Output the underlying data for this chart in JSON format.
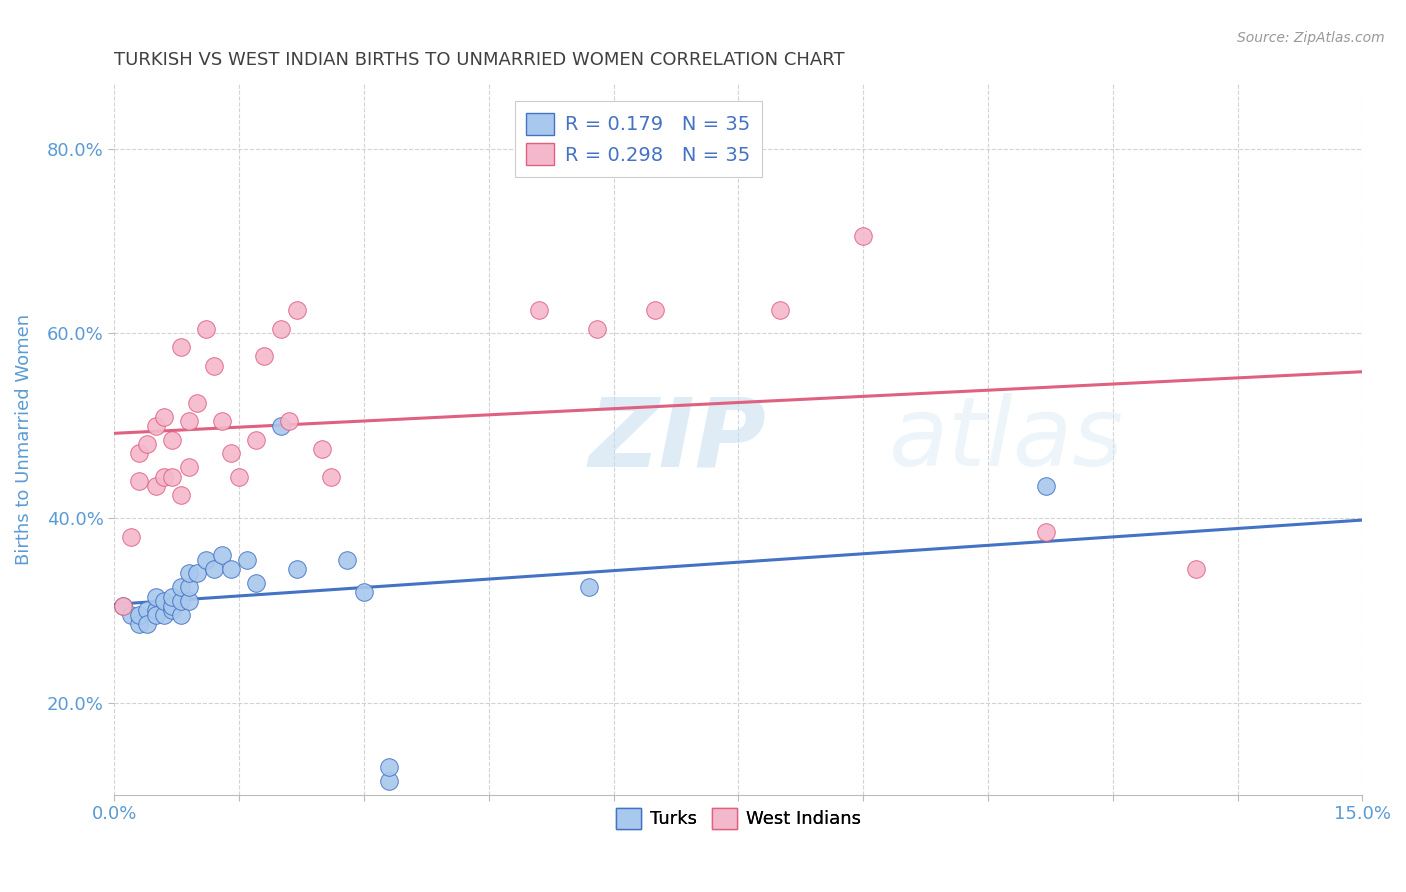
{
  "title": "TURKISH VS WEST INDIAN BIRTHS TO UNMARRIED WOMEN CORRELATION CHART",
  "source": "Source: ZipAtlas.com",
  "ylabel": "Births to Unmarried Women",
  "xlim": [
    0.0,
    0.15
  ],
  "ylim": [
    0.1,
    0.87
  ],
  "xticks": [
    0.0,
    0.015,
    0.03,
    0.045,
    0.06,
    0.075,
    0.09,
    0.105,
    0.12,
    0.135,
    0.15
  ],
  "xtick_labels": [
    "0.0%",
    "",
    "",
    "",
    "",
    "",
    "",
    "",
    "",
    "",
    "15.0%"
  ],
  "yticks": [
    0.2,
    0.4,
    0.6,
    0.8
  ],
  "ytick_labels": [
    "20.0%",
    "40.0%",
    "60.0%",
    "80.0%"
  ],
  "blue_color": "#a8c8ed",
  "pink_color": "#f4b8cc",
  "blue_line_color": "#4472c4",
  "pink_line_color": "#e06080",
  "turks_x": [
    0.001,
    0.002,
    0.003,
    0.003,
    0.004,
    0.004,
    0.005,
    0.005,
    0.005,
    0.006,
    0.006,
    0.007,
    0.007,
    0.007,
    0.008,
    0.008,
    0.008,
    0.009,
    0.009,
    0.009,
    0.01,
    0.011,
    0.012,
    0.013,
    0.014,
    0.016,
    0.017,
    0.02,
    0.022,
    0.028,
    0.03,
    0.033,
    0.033,
    0.057,
    0.112
  ],
  "turks_y": [
    0.305,
    0.295,
    0.285,
    0.295,
    0.3,
    0.285,
    0.3,
    0.295,
    0.315,
    0.295,
    0.31,
    0.3,
    0.305,
    0.315,
    0.295,
    0.31,
    0.325,
    0.31,
    0.325,
    0.34,
    0.34,
    0.355,
    0.345,
    0.36,
    0.345,
    0.355,
    0.33,
    0.5,
    0.345,
    0.355,
    0.32,
    0.115,
    0.13,
    0.325,
    0.435
  ],
  "west_x": [
    0.001,
    0.002,
    0.003,
    0.003,
    0.004,
    0.005,
    0.005,
    0.006,
    0.006,
    0.007,
    0.007,
    0.008,
    0.008,
    0.009,
    0.009,
    0.01,
    0.011,
    0.012,
    0.013,
    0.014,
    0.015,
    0.017,
    0.018,
    0.02,
    0.021,
    0.022,
    0.025,
    0.026,
    0.051,
    0.058,
    0.065,
    0.08,
    0.09,
    0.112,
    0.13
  ],
  "west_y": [
    0.305,
    0.38,
    0.44,
    0.47,
    0.48,
    0.435,
    0.5,
    0.445,
    0.51,
    0.445,
    0.485,
    0.425,
    0.585,
    0.455,
    0.505,
    0.525,
    0.605,
    0.565,
    0.505,
    0.47,
    0.445,
    0.485,
    0.575,
    0.605,
    0.505,
    0.625,
    0.475,
    0.445,
    0.625,
    0.605,
    0.625,
    0.625,
    0.705,
    0.385,
    0.345
  ],
  "background_color": "#ffffff",
  "grid_color": "#c8c8c8",
  "title_color": "#404040",
  "axis_label_color": "#5b9bd5",
  "tick_color": "#5b9bd5"
}
